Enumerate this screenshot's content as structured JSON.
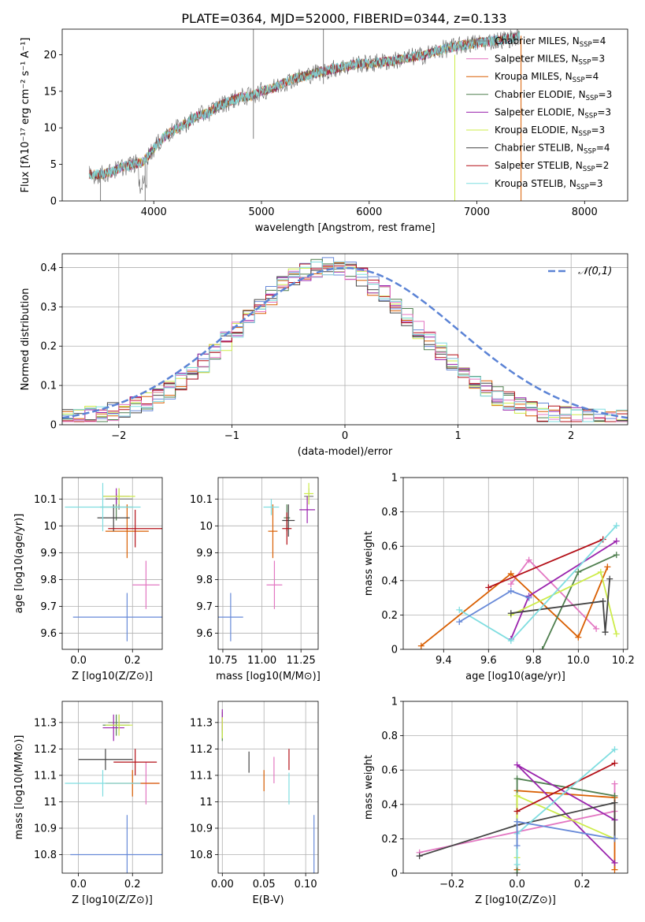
{
  "figure_title": "PLATE=0364, MJD=52000, FIBERID=0344, z=0.133",
  "colors": [
    "#7f7f7f",
    "#e377c2",
    "#d95f02",
    "#4f7f4f",
    "#9a23ad",
    "#cdec4a",
    "#454545",
    "#b30f17",
    "#7fdde0",
    "#6789d8"
  ],
  "chart_data": [
    {
      "id": "spectrum",
      "type": "line",
      "title": "PLATE=0364, MJD=52000, FIBERID=0344, z=0.133",
      "xlabel": "wavelength [Angstrom, rest frame]",
      "ylabel": "Flux [fλ10⁻¹⁷ erg cm⁻² s⁻¹ A⁻¹]",
      "xlim": [
        3150,
        8400
      ],
      "ylim": [
        0,
        23.5
      ],
      "xticks": [
        4000,
        5000,
        6000,
        7000,
        8000
      ],
      "yticks": [
        0,
        5,
        10,
        15,
        20
      ],
      "grid": false,
      "legend": "top-right",
      "data_range_x": [
        3400,
        7400
      ],
      "data_x": [
        3400,
        3500,
        3600,
        3700,
        3800,
        3900,
        4000,
        4100,
        4200,
        4300,
        4400,
        4500,
        4600,
        4700,
        4800,
        4900,
        5000,
        5100,
        5200,
        5300,
        5400,
        5500,
        5600,
        5700,
        5800,
        5900,
        6000,
        6100,
        6200,
        6300,
        6400,
        6500,
        6600,
        6700,
        6800,
        6900,
        7000,
        7100,
        7200,
        7300,
        7400
      ],
      "data_y": [
        3.6,
        3.6,
        3.9,
        4.6,
        5.0,
        5.3,
        7.2,
        8.8,
        9.8,
        10.6,
        11.6,
        12.0,
        13.0,
        13.6,
        14.2,
        14.3,
        15.0,
        15.4,
        16.1,
        16.7,
        17.1,
        17.5,
        17.8,
        18.2,
        18.4,
        18.8,
        18.7,
        19.0,
        19.1,
        19.4,
        19.7,
        19.9,
        20.4,
        20.8,
        21.1,
        21.4,
        21.6,
        21.8,
        22.0,
        22.2,
        22.6
      ],
      "series": [
        {
          "name": "Chabrier MILES, N_SSP=4"
        },
        {
          "name": "Salpeter MILES, N_SSP=3"
        },
        {
          "name": "Kroupa MILES, N_SSP=4"
        },
        {
          "name": "Chabrier ELODIE, N_SSP=3"
        },
        {
          "name": "Salpeter ELODIE, N_SSP=3"
        },
        {
          "name": "Kroupa ELODIE, N_SSP=3"
        },
        {
          "name": "Chabrier STELIB, N_SSP=4"
        },
        {
          "name": "Salpeter STELIB, N_SSP=2"
        },
        {
          "name": "Kroupa STELIB, N_SSP=3"
        }
      ]
    },
    {
      "id": "residuals",
      "type": "line",
      "xlabel": "(data-model)/error",
      "ylabel": "Normed distribution",
      "xlim": [
        -2.5,
        2.5
      ],
      "ylim": [
        0,
        0.435
      ],
      "xticks": [
        -2,
        -1,
        0,
        1,
        2
      ],
      "yticks": [
        0.0,
        0.1,
        0.2,
        0.3,
        0.4
      ],
      "grid": true,
      "legend": "top-right",
      "series": [
        {
          "name": "𝒩(0,1)",
          "style": "dashed",
          "x": [
            -2.5,
            -2.0,
            -1.5,
            -1.0,
            -0.5,
            0.0,
            0.5,
            1.0,
            1.5,
            2.0,
            2.5
          ],
          "y": [
            0.018,
            0.054,
            0.13,
            0.242,
            0.352,
            0.399,
            0.352,
            0.242,
            0.13,
            0.054,
            0.018
          ]
        }
      ],
      "histogram_bin_width": 0.1,
      "histogram_mean_values": [
        0.047,
        0.055,
        0.062,
        0.07,
        0.079,
        0.088,
        0.097,
        0.108,
        0.119,
        0.13,
        0.142,
        0.154,
        0.166,
        0.18,
        0.193,
        0.207,
        0.22,
        0.234,
        0.248,
        0.261,
        0.274,
        0.287,
        0.299,
        0.31,
        0.32,
        0.33,
        0.338,
        0.346,
        0.352,
        0.357,
        0.361,
        0.364,
        0.365,
        0.365,
        0.364,
        0.361,
        0.357,
        0.352,
        0.346,
        0.338,
        0.33,
        0.32,
        0.31,
        0.299,
        0.287,
        0.274,
        0.261,
        0.248,
        0.234,
        0.22,
        0.207,
        0.193,
        0.18,
        0.166,
        0.154,
        0.142,
        0.13,
        0.119,
        0.108,
        0.097,
        0.088,
        0.079,
        0.07,
        0.062,
        0.055,
        0.049,
        0.043,
        0.038,
        0.033,
        0.029,
        0.025,
        0.022,
        0.019,
        0.016,
        0.014,
        0.012,
        0.01,
        0.009,
        0.008,
        0.007,
        0.006,
        0.005,
        0.004,
        0.004,
        0.003,
        0.003,
        0.002,
        0.002,
        0.002,
        0.001,
        0.001,
        0.001,
        0.001,
        0.001,
        0.001,
        0.001,
        0.001,
        0.001,
        0.001,
        0.001
      ]
    },
    {
      "id": "age_vs_Z",
      "type": "scatter",
      "xlabel": "Z [log10(Z/Z⊙)]",
      "ylabel": "age  [log10(age/yr)]",
      "xlim": [
        -0.06,
        0.31
      ],
      "ylim": [
        9.54,
        10.18
      ],
      "xticks": [
        0.0,
        0.2
      ],
      "yticks": [
        9.6,
        9.7,
        9.8,
        9.9,
        10.0,
        10.1
      ],
      "grid": true,
      "points": [
        {
          "c": 0,
          "x": 0.15,
          "y": 10.1,
          "xe": 0.05,
          "ye": 0.04
        },
        {
          "c": 1,
          "x": 0.25,
          "y": 9.78,
          "xe": 0.05,
          "ye": 0.09
        },
        {
          "c": 2,
          "x": 0.18,
          "y": 9.98,
          "xe": 0.08,
          "ye": 0.1
        },
        {
          "c": 3,
          "x": 0.14,
          "y": 10.07,
          "xe": 0.06,
          "ye": 0.05
        },
        {
          "c": 4,
          "x": 0.14,
          "y": 10.11,
          "xe": 0.05,
          "ye": 0.03
        },
        {
          "c": 5,
          "x": 0.15,
          "y": 10.11,
          "xe": 0.06,
          "ye": 0.03
        },
        {
          "c": 6,
          "x": 0.13,
          "y": 10.03,
          "xe": 0.06,
          "ye": 0.05
        },
        {
          "c": 7,
          "x": 0.21,
          "y": 9.99,
          "xe": 0.1,
          "ye": 0.07
        },
        {
          "c": 8,
          "x": 0.09,
          "y": 10.07,
          "xe": 0.14,
          "ye": 0.09
        },
        {
          "c": 9,
          "x": 0.18,
          "y": 9.66,
          "xe": 0.2,
          "ye": 0.09
        }
      ]
    },
    {
      "id": "age_vs_mass",
      "type": "scatter",
      "xlabel": "mass [log10(M/M⊙)]",
      "xlim": [
        10.72,
        11.36
      ],
      "ylim": [
        9.54,
        10.18
      ],
      "xticks": [
        10.75,
        11.0,
        11.25
      ],
      "yticks": [
        9.6,
        9.7,
        9.8,
        9.9,
        10.0,
        10.1
      ],
      "grid": true,
      "points": [
        {
          "c": 0,
          "x": 11.3,
          "y": 10.11,
          "xe": 0.03,
          "ye": 0.03
        },
        {
          "c": 1,
          "x": 11.08,
          "y": 9.78,
          "xe": 0.05,
          "ye": 0.09
        },
        {
          "c": 2,
          "x": 11.07,
          "y": 9.98,
          "xe": 0.03,
          "ye": 0.1
        },
        {
          "c": 3,
          "x": 11.16,
          "y": 10.03,
          "xe": 0.02,
          "ye": 0.05
        },
        {
          "c": 4,
          "x": 11.29,
          "y": 10.06,
          "xe": 0.05,
          "ye": 0.05
        },
        {
          "c": 5,
          "x": 11.3,
          "y": 10.12,
          "xe": 0.03,
          "ye": 0.04
        },
        {
          "c": 6,
          "x": 11.17,
          "y": 10.02,
          "xe": 0.04,
          "ye": 0.06
        },
        {
          "c": 7,
          "x": 11.16,
          "y": 9.99,
          "xe": 0.03,
          "ye": 0.06
        },
        {
          "c": 8,
          "x": 11.06,
          "y": 10.07,
          "xe": 0.05,
          "ye": 0.03
        },
        {
          "c": 9,
          "x": 10.8,
          "y": 9.66,
          "xe": 0.08,
          "ye": 0.09
        }
      ]
    },
    {
      "id": "mass_weight_vs_age",
      "type": "line",
      "xlabel": "age  [log10(age/yr)]",
      "ylabel": "mass weight",
      "xlim": [
        9.22,
        10.22
      ],
      "ylim": [
        0.0,
        1.0
      ],
      "xticks": [
        9.4,
        9.6,
        9.8,
        10.0,
        10.2
      ],
      "yticks": [
        0.0,
        0.2,
        0.4,
        0.6,
        0.8,
        1.0
      ],
      "grid": true,
      "series": [
        {
          "c": 1,
          "x": [
            9.7,
            9.78,
            10.08
          ],
          "y": [
            0.38,
            0.52,
            0.12
          ]
        },
        {
          "c": 2,
          "x": [
            9.3,
            9.7,
            10.0,
            10.13
          ],
          "y": [
            0.02,
            0.44,
            0.07,
            0.48
          ]
        },
        {
          "c": 3,
          "x": [
            9.84,
            10.0,
            10.17
          ],
          "y": [
            0.0,
            0.45,
            0.55
          ]
        },
        {
          "c": 4,
          "x": [
            9.7,
            9.78,
            10.17
          ],
          "y": [
            0.06,
            0.31,
            0.63
          ]
        },
        {
          "c": 5,
          "x": [
            9.7,
            10.1,
            10.17
          ],
          "y": [
            0.2,
            0.45,
            0.09
          ]
        },
        {
          "c": 6,
          "x": [
            9.7,
            10.11,
            10.12,
            10.14
          ],
          "y": [
            0.21,
            0.28,
            0.1,
            0.41
          ]
        },
        {
          "c": 7,
          "x": [
            9.6,
            10.11
          ],
          "y": [
            0.36,
            0.64
          ]
        },
        {
          "c": 8,
          "x": [
            9.47,
            9.7,
            10.17
          ],
          "y": [
            0.23,
            0.05,
            0.72
          ]
        },
        {
          "c": 9,
          "x": [
            9.47,
            9.7,
            9.78
          ],
          "y": [
            0.16,
            0.34,
            0.3
          ]
        }
      ]
    },
    {
      "id": "mass_vs_Z",
      "type": "scatter",
      "xlabel": "Z [log10(Z/Z⊙)]",
      "ylabel": "mass [log10(M/M⊙)]",
      "xlim": [
        -0.06,
        0.31
      ],
      "ylim": [
        10.73,
        11.38
      ],
      "xticks": [
        0.0,
        0.2
      ],
      "yticks": [
        10.8,
        10.9,
        11.0,
        11.1,
        11.2,
        11.3
      ],
      "grid": true,
      "points": [
        {
          "c": 0,
          "x": 0.15,
          "y": 11.3,
          "xe": 0.04,
          "ye": 0.03
        },
        {
          "c": 1,
          "x": 0.25,
          "y": 11.07,
          "xe": 0.05,
          "ye": 0.08
        },
        {
          "c": 2,
          "x": 0.2,
          "y": 11.07,
          "xe": 0.1,
          "ye": 0.05
        },
        {
          "c": 3,
          "x": 0.14,
          "y": 11.29,
          "xe": 0.05,
          "ye": 0.04
        },
        {
          "c": 4,
          "x": 0.13,
          "y": 11.28,
          "xe": 0.04,
          "ye": 0.05
        },
        {
          "c": 5,
          "x": 0.15,
          "y": 11.29,
          "xe": 0.05,
          "ye": 0.04
        },
        {
          "c": 6,
          "x": 0.1,
          "y": 11.16,
          "xe": 0.1,
          "ye": 0.04
        },
        {
          "c": 7,
          "x": 0.21,
          "y": 11.15,
          "xe": 0.08,
          "ye": 0.05
        },
        {
          "c": 8,
          "x": 0.09,
          "y": 11.07,
          "xe": 0.14,
          "ye": 0.05
        },
        {
          "c": 9,
          "x": 0.18,
          "y": 10.8,
          "xe": 0.21,
          "ye": 0.15
        }
      ]
    },
    {
      "id": "mass_vs_ebv",
      "type": "scatter",
      "xlabel": "E(B-V)",
      "xlim": [
        -0.005,
        0.115
      ],
      "ylim": [
        10.73,
        11.38
      ],
      "xticks": [
        0.0,
        0.05,
        0.1
      ],
      "yticks": [
        10.8,
        10.9,
        11.0,
        11.1,
        11.2,
        11.3
      ],
      "grid": true,
      "points": [
        {
          "c": 0,
          "x": 0.0,
          "y": 11.3,
          "xe": 0.0,
          "ye": 0.04
        },
        {
          "c": 1,
          "x": 0.062,
          "y": 11.12,
          "xe": 0.0,
          "ye": 0.05
        },
        {
          "c": 2,
          "x": 0.05,
          "y": 11.08,
          "xe": 0.0,
          "ye": 0.04
        },
        {
          "c": 3,
          "x": 0.0,
          "y": 11.26,
          "xe": 0.0,
          "ye": 0.03
        },
        {
          "c": 4,
          "x": 0.0,
          "y": 11.31,
          "xe": 0.0,
          "ye": 0.04
        },
        {
          "c": 5,
          "x": 0.0,
          "y": 11.28,
          "xe": 0.0,
          "ye": 0.04
        },
        {
          "c": 6,
          "x": 0.032,
          "y": 11.15,
          "xe": 0.0,
          "ye": 0.04
        },
        {
          "c": 7,
          "x": 0.08,
          "y": 11.16,
          "xe": 0.0,
          "ye": 0.04
        },
        {
          "c": 8,
          "x": 0.08,
          "y": 11.05,
          "xe": 0.0,
          "ye": 0.06
        },
        {
          "c": 9,
          "x": 0.11,
          "y": 10.81,
          "xe": 0.0,
          "ye": 0.14
        }
      ]
    },
    {
      "id": "mass_weight_vs_Z",
      "type": "line",
      "xlabel": "Z [log10(Z/Z⊙)]",
      "ylabel": "mass weight",
      "xlim": [
        -0.35,
        0.34
      ],
      "ylim": [
        0.0,
        1.0
      ],
      "xticks": [
        -0.2,
        0.0,
        0.2
      ],
      "yticks": [
        0.0,
        0.2,
        0.4,
        0.6,
        0.8,
        1.0
      ],
      "grid": true,
      "series": [
        {
          "c": 1,
          "x": [
            -0.3,
            0.3,
            0.3
          ],
          "y": [
            0.12,
            0.36,
            0.52
          ]
        },
        {
          "c": 2,
          "x": [
            0.0,
            0.0,
            0.3,
            0.3
          ],
          "y": [
            0.02,
            0.48,
            0.44,
            0.02
          ]
        },
        {
          "c": 3,
          "x": [
            0.0,
            0.0,
            0.3
          ],
          "y": [
            0.0,
            0.55,
            0.45
          ]
        },
        {
          "c": 4,
          "x": [
            0.3,
            0.0,
            0.3
          ],
          "y": [
            0.06,
            0.63,
            0.31
          ]
        },
        {
          "c": 5,
          "x": [
            0.0,
            0.0,
            0.3
          ],
          "y": [
            0.09,
            0.45,
            0.2
          ]
        },
        {
          "c": 6,
          "x": [
            -0.3,
            0.0,
            0.3,
            0.3
          ],
          "y": [
            0.1,
            0.28,
            0.41,
            0.2
          ]
        },
        {
          "c": 7,
          "x": [
            0.0,
            0.3
          ],
          "y": [
            0.36,
            0.64
          ]
        },
        {
          "c": 8,
          "x": [
            0.0,
            0.0,
            0.3
          ],
          "y": [
            0.05,
            0.23,
            0.72
          ]
        },
        {
          "c": 9,
          "x": [
            0.0,
            0.0,
            0.3
          ],
          "y": [
            0.16,
            0.3,
            0.2
          ]
        }
      ]
    }
  ]
}
